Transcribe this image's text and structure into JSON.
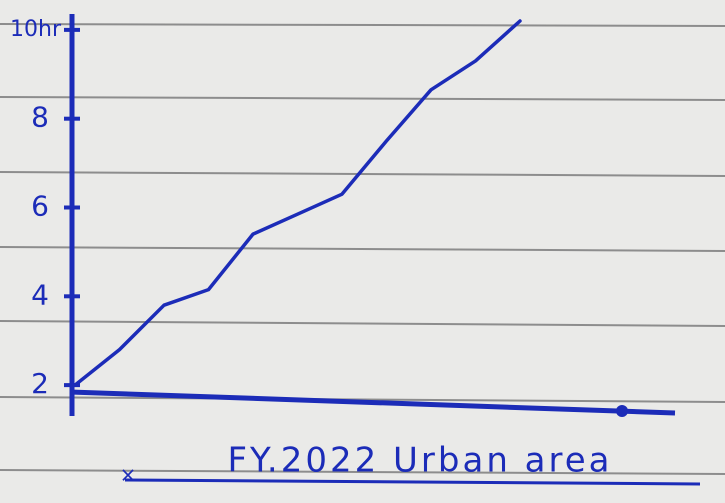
{
  "chart_data": {
    "type": "line",
    "title": "FY.2022 Urban area",
    "categories": [
      null,
      null,
      null,
      null,
      null,
      null,
      null,
      null,
      null,
      null,
      null
    ],
    "series": [
      {
        "color": "#1c2cb8",
        "values": [
          2.0,
          2.8,
          3.8,
          4.15,
          5.4,
          5.85,
          6.3,
          7.5,
          8.65,
          9.3,
          10.2
        ]
      }
    ],
    "ylim": [
      1.8,
      10.2
    ],
    "yticks": [
      2,
      4,
      6,
      8,
      {
        "value": 10,
        "label": "10hr"
      }
    ]
  }
}
